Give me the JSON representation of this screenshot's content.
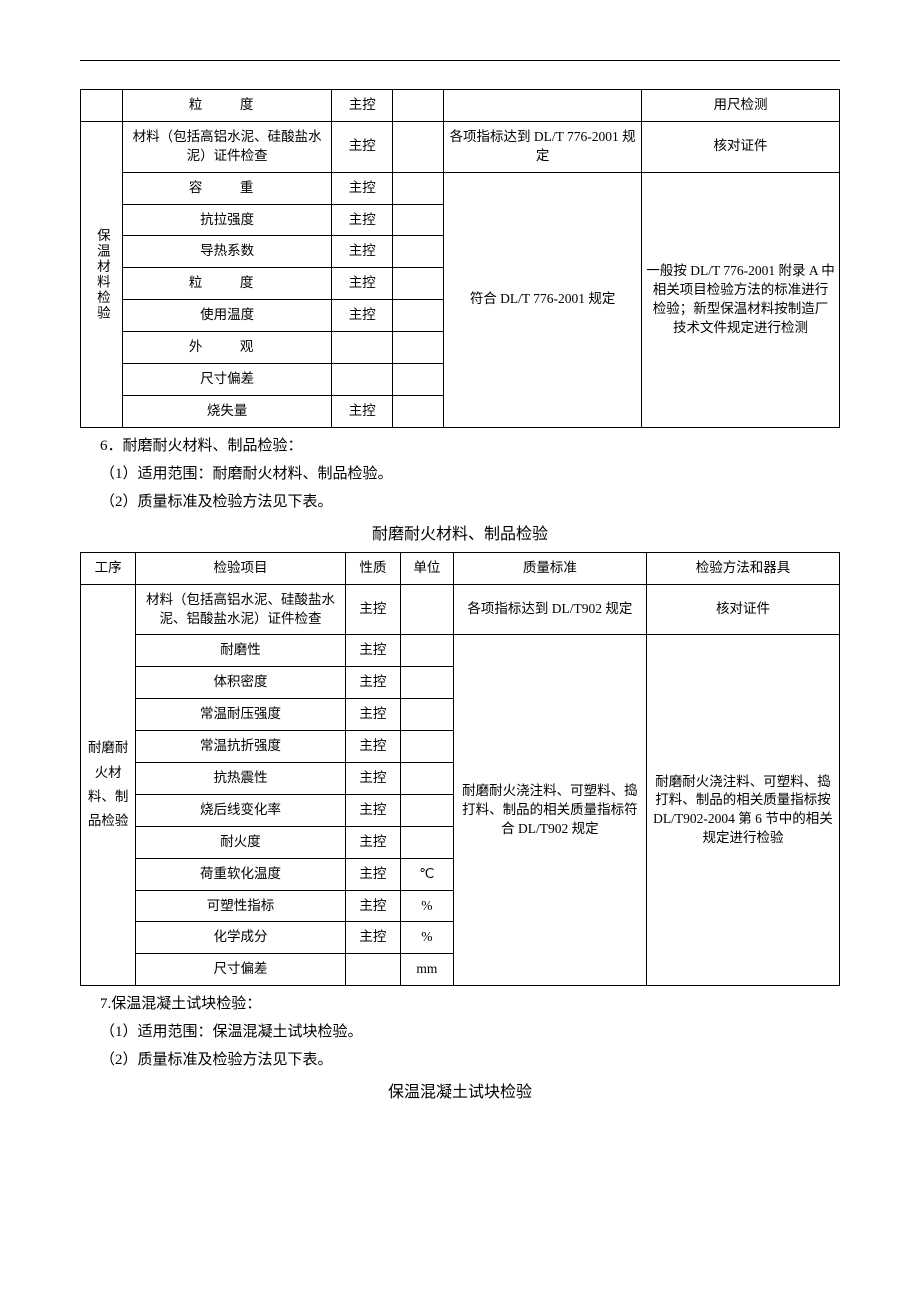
{
  "table1": {
    "group_label": "保温材料检验",
    "rows": [
      {
        "item": "粒　度",
        "nature": "主控",
        "unit": "",
        "std": "",
        "method": "用尺检测"
      },
      {
        "item": "材料（包括高铝水泥、硅酸盐水泥）证件检查",
        "nature": "主控",
        "unit": "",
        "std": "各项指标达到 DL/T 776-2001 规定",
        "method": "核对证件"
      },
      {
        "item": "容　重",
        "nature": "主控",
        "unit": ""
      },
      {
        "item": "抗拉强度",
        "nature": "主控",
        "unit": ""
      },
      {
        "item": "导热系数",
        "nature": "主控",
        "unit": ""
      },
      {
        "item": "粒　度",
        "nature": "主控",
        "unit": ""
      },
      {
        "item": "使用温度",
        "nature": "主控",
        "unit": ""
      },
      {
        "item": "外　观",
        "nature": "",
        "unit": ""
      },
      {
        "item": "尺寸偏差",
        "nature": "",
        "unit": ""
      },
      {
        "item": "烧失量",
        "nature": "主控",
        "unit": ""
      }
    ],
    "std_merged": "符合 DL/T 776-2001 规定",
    "method_merged": "一般按 DL/T 776-2001 附录 A 中相关项目检验方法的标准进行检验；新型保温材料按制造厂技术文件规定进行检测"
  },
  "section6": {
    "heading_num": "6．",
    "heading": "耐磨耐火材料、制品检验：",
    "line1": "（1）适用范围：耐磨耐火材料、制品检验。",
    "line2": "（2）质量标准及检验方法见下表。",
    "table_title": "耐磨耐火材料、制品检验"
  },
  "table2": {
    "headers": [
      "工序",
      "检验项目",
      "性质",
      "单位",
      "质量标准",
      "检验方法和器具"
    ],
    "group_label": "耐磨耐火材料、制品检验",
    "rows": [
      {
        "item": "材料（包括高铝水泥、硅酸盐水泥、铝酸盐水泥）证件检查",
        "nature": "主控",
        "unit": "",
        "std": "各项指标达到 DL/T902 规定",
        "method": "核对证件"
      },
      {
        "item": "耐磨性",
        "nature": "主控",
        "unit": ""
      },
      {
        "item": "体积密度",
        "nature": "主控",
        "unit": ""
      },
      {
        "item": "常温耐压强度",
        "nature": "主控",
        "unit": ""
      },
      {
        "item": "常温抗折强度",
        "nature": "主控",
        "unit": ""
      },
      {
        "item": "抗热震性",
        "nature": "主控",
        "unit": ""
      },
      {
        "item": "烧后线变化率",
        "nature": "主控",
        "unit": ""
      },
      {
        "item": "耐火度",
        "nature": "主控",
        "unit": ""
      },
      {
        "item": "荷重软化温度",
        "nature": "主控",
        "unit": "℃"
      },
      {
        "item": "可塑性指标",
        "nature": "主控",
        "unit": "%"
      },
      {
        "item": "化学成分",
        "nature": "主控",
        "unit": "%"
      },
      {
        "item": "尺寸偏差",
        "nature": "",
        "unit": "mm"
      }
    ],
    "std_merged": "耐磨耐火浇注料、可塑料、捣打料、制品的相关质量指标符合 DL/T902 规定",
    "method_merged": "耐磨耐火浇注料、可塑料、捣打料、制品的相关质量指标按 DL/T902-2004 第 6 节中的相关规定进行检验"
  },
  "section7": {
    "heading_num": "7.",
    "heading": "保温混凝土试块检验：",
    "line1": "（1）适用范围：保温混凝土试块检验。",
    "line2": "（2）质量标准及检验方法见下表。",
    "table_title": "保温混凝土试块检验"
  }
}
